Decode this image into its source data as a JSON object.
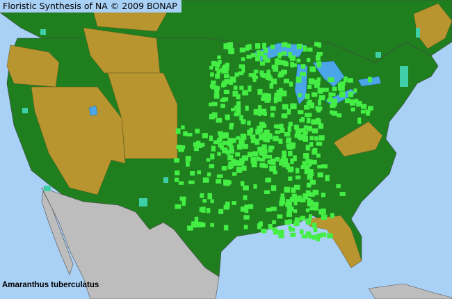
{
  "title": "Floristic Synthesis of NA © 2009 BONAP",
  "species": "Amaranthus tuberculatus",
  "colors": {
    "ocean": "#a9d0f5",
    "lakes": "#4aa6e6",
    "present_state": "#1f7f1f",
    "present_county": "#44ee44",
    "absent_state": "#b8952e",
    "rare": "#3fcfa8",
    "outside_area": "#bdbdbd",
    "borders": "#505050"
  }
}
